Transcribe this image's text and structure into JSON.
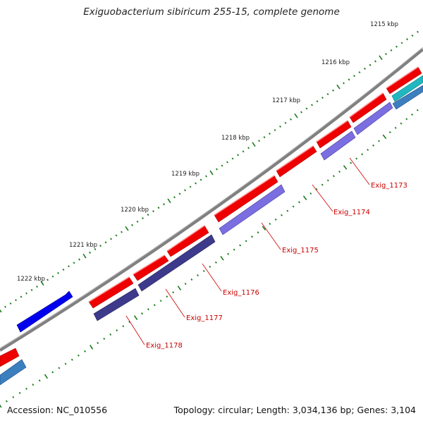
{
  "title": "Exiguobacterium sibiricum 255-15, complete genome",
  "footer": {
    "accession": "Accession: NC_010556",
    "summary": "Topology: circular; Length: 3,034,136 bp; Genes: 3,104"
  },
  "scale_labels": [
    "1215 kbp",
    "1216 kbp",
    "1217 kbp",
    "1218 kbp",
    "1219 kbp",
    "1220 kbp",
    "1221 kbp",
    "1222 kbp"
  ],
  "gene_labels": [
    "Exig_1173",
    "Exig_1174",
    "Exig_1175",
    "Exig_1176",
    "Exig_1177",
    "Exig_1178"
  ],
  "colors": {
    "backbone": "#808080",
    "forward_cds": "#ee0000",
    "reverse_cds_light": "#7a6ee0",
    "reverse_cds_dark": "#3d3a8c",
    "other_forward": "#0000ee",
    "teal_feature": "#20b8c0",
    "steel_feature": "#3b7fbf",
    "tick": "#1a7a1a",
    "label": "#cc0000"
  }
}
